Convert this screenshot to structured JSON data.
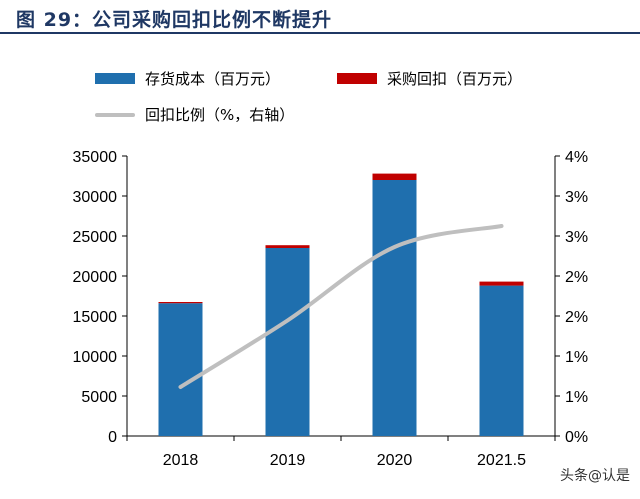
{
  "title": "图 29：公司采购回扣比例不断提升",
  "watermark": "头条@认是",
  "colors": {
    "stock_cost": "#1f6fae",
    "rebate": "#c00000",
    "ratio_line": "#bfbfbf",
    "title": "#1f3864"
  },
  "legend": {
    "stock_cost": "存货成本（百万元）",
    "rebate": "采购回扣（百万元）",
    "ratio": "回扣比例（%，右轴）"
  },
  "chart_data": {
    "type": "bar",
    "categories": [
      "2018",
      "2019",
      "2020",
      "2021.5"
    ],
    "series": [
      {
        "name": "存货成本（百万元）",
        "type": "bar",
        "stack": "total",
        "values": [
          16600,
          23500,
          32000,
          18800
        ]
      },
      {
        "name": "采购回扣（百万元）",
        "type": "bar",
        "stack": "total",
        "values": [
          150,
          350,
          800,
          500
        ]
      },
      {
        "name": "回扣比例（%，右轴）",
        "type": "line",
        "axis": "right",
        "values": [
          0.7,
          1.65,
          2.7,
          3.0
        ]
      }
    ],
    "ylim": [
      0,
      35000
    ],
    "yticks": [
      "0",
      "5000",
      "10000",
      "15000",
      "20000",
      "25000",
      "30000",
      "35000"
    ],
    "y2lim": [
      0,
      4
    ],
    "y2ticks": [
      "0%",
      "1%",
      "1%",
      "2%",
      "2%",
      "3%",
      "3%",
      "4%"
    ],
    "grid": false,
    "legend_position": "top-left"
  }
}
